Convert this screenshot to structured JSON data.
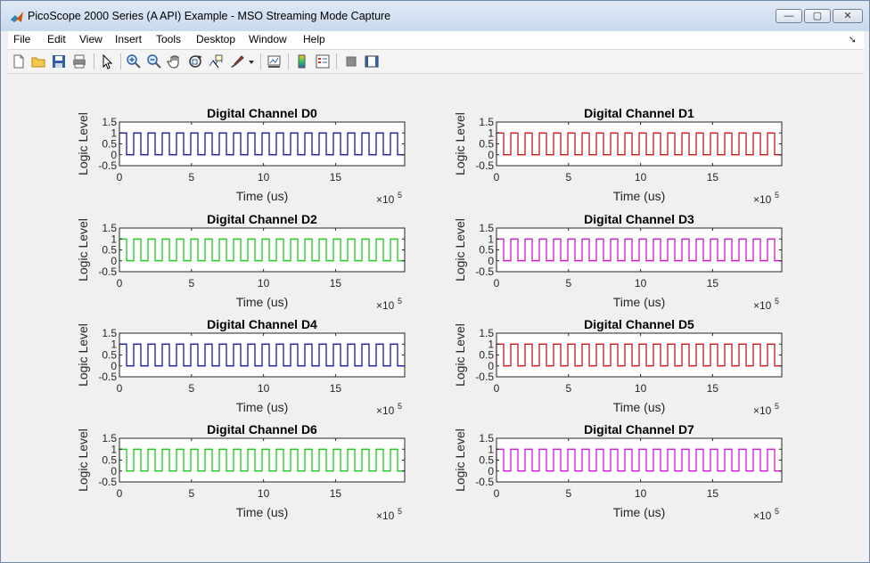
{
  "window": {
    "title": "PicoScope 2000 Series (A API) Example - MSO Streaming Mode Capture",
    "minimize_label": "—",
    "maximize_label": "▢",
    "close_label": "✕"
  },
  "menu": [
    "File",
    "Edit",
    "View",
    "Insert",
    "Tools",
    "Desktop",
    "Window",
    "Help"
  ],
  "toolbar": {
    "icons": [
      "new-figure-icon",
      "open-file-icon",
      "save-icon",
      "print-icon",
      "pointer-icon",
      "zoom-in-icon",
      "zoom-out-icon",
      "pan-hand-icon",
      "rotate-3d-icon",
      "data-cursor-icon",
      "brush-icon",
      "dropdown-arrow-icon",
      "link-plot-icon",
      "colorbar-icon",
      "legend-icon",
      "hide-plot-tools-icon",
      "show-plot-tools-icon"
    ]
  },
  "chart_data": [
    {
      "type": "line",
      "title": "Digital Channel D0",
      "xlabel": "Time (us)",
      "ylabel": "Logic Level",
      "x_exponent_label": "×10",
      "x_exponent": "5",
      "xticks": [
        0,
        5,
        10,
        15
      ],
      "yticks": [
        "-0.5",
        "0",
        "0.5",
        "1",
        "1.5"
      ],
      "xlim": [
        0,
        19.8
      ],
      "ylim": [
        -0.5,
        1.5
      ],
      "color": "#0000aa",
      "signal": {
        "kind": "square_wave",
        "low": 0,
        "high": 1,
        "cycles": 20
      }
    },
    {
      "type": "line",
      "title": "Digital Channel D1",
      "xlabel": "Time (us)",
      "ylabel": "Logic Level",
      "x_exponent_label": "×10",
      "x_exponent": "5",
      "xticks": [
        0,
        5,
        10,
        15
      ],
      "yticks": [
        "-0.5",
        "0",
        "0.5",
        "1",
        "1.5"
      ],
      "xlim": [
        0,
        19.8
      ],
      "ylim": [
        -0.5,
        1.5
      ],
      "color": "#cc0000",
      "signal": {
        "kind": "square_wave",
        "low": 0,
        "high": 1,
        "cycles": 20
      }
    },
    {
      "type": "line",
      "title": "Digital Channel D2",
      "xlabel": "Time (us)",
      "ylabel": "Logic Level",
      "x_exponent_label": "×10",
      "x_exponent": "5",
      "xticks": [
        0,
        5,
        10,
        15
      ],
      "yticks": [
        "-0.5",
        "0",
        "0.5",
        "1",
        "1.5"
      ],
      "xlim": [
        0,
        19.8
      ],
      "ylim": [
        -0.5,
        1.5
      ],
      "color": "#00cc00",
      "signal": {
        "kind": "square_wave",
        "low": 0,
        "high": 1,
        "cycles": 20
      }
    },
    {
      "type": "line",
      "title": "Digital Channel D3",
      "xlabel": "Time (us)",
      "ylabel": "Logic Level",
      "x_exponent_label": "×10",
      "x_exponent": "5",
      "xticks": [
        0,
        5,
        10,
        15
      ],
      "yticks": [
        "-0.5",
        "0",
        "0.5",
        "1",
        "1.5"
      ],
      "xlim": [
        0,
        19.8
      ],
      "ylim": [
        -0.5,
        1.5
      ],
      "color": "#cc00cc",
      "signal": {
        "kind": "square_wave",
        "low": 0,
        "high": 1,
        "cycles": 20
      }
    },
    {
      "type": "line",
      "title": "Digital Channel D4",
      "xlabel": "Time (us)",
      "ylabel": "Logic Level",
      "x_exponent_label": "×10",
      "x_exponent": "5",
      "xticks": [
        0,
        5,
        10,
        15
      ],
      "yticks": [
        "-0.5",
        "0",
        "0.5",
        "1",
        "1.5"
      ],
      "xlim": [
        0,
        19.8
      ],
      "ylim": [
        -0.5,
        1.5
      ],
      "color": "#0000aa",
      "signal": {
        "kind": "square_wave",
        "low": 0,
        "high": 1,
        "cycles": 20
      }
    },
    {
      "type": "line",
      "title": "Digital Channel D5",
      "xlabel": "Time (us)",
      "ylabel": "Logic Level",
      "x_exponent_label": "×10",
      "x_exponent": "5",
      "xticks": [
        0,
        5,
        10,
        15
      ],
      "yticks": [
        "-0.5",
        "0",
        "0.5",
        "1",
        "1.5"
      ],
      "xlim": [
        0,
        19.8
      ],
      "ylim": [
        -0.5,
        1.5
      ],
      "color": "#cc0000",
      "signal": {
        "kind": "square_wave",
        "low": 0,
        "high": 1,
        "cycles": 20
      }
    },
    {
      "type": "line",
      "title": "Digital Channel D6",
      "xlabel": "Time (us)",
      "ylabel": "Logic Level",
      "x_exponent_label": "×10",
      "x_exponent": "5",
      "xticks": [
        0,
        5,
        10,
        15
      ],
      "yticks": [
        "-0.5",
        "0",
        "0.5",
        "1",
        "1.5"
      ],
      "xlim": [
        0,
        19.8
      ],
      "ylim": [
        -0.5,
        1.5
      ],
      "color": "#00cc00",
      "signal": {
        "kind": "square_wave",
        "low": 0,
        "high": 1,
        "cycles": 20
      }
    },
    {
      "type": "line",
      "title": "Digital Channel D7",
      "xlabel": "Time (us)",
      "ylabel": "Logic Level",
      "x_exponent_label": "×10",
      "x_exponent": "5",
      "xticks": [
        0,
        5,
        10,
        15
      ],
      "yticks": [
        "-0.5",
        "0",
        "0.5",
        "1",
        "1.5"
      ],
      "xlim": [
        0,
        19.8
      ],
      "ylim": [
        -0.5,
        1.5
      ],
      "color": "#cc00cc",
      "signal": {
        "kind": "square_wave",
        "low": 0,
        "high": 1,
        "cycles": 20
      }
    }
  ]
}
